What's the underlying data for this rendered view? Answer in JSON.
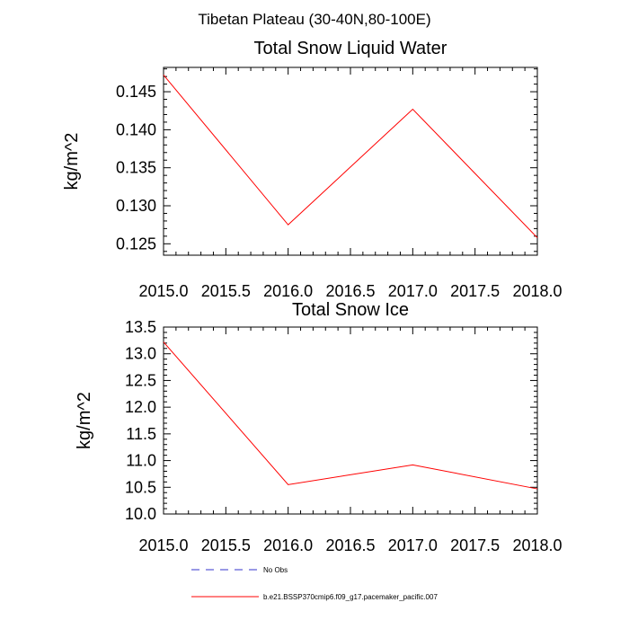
{
  "figure": {
    "title": "Tibetan Plateau (30-40N,80-100E)"
  },
  "chart_data": [
    {
      "type": "line",
      "title": "Total Snow Liquid Water",
      "xlabel": "",
      "ylabel": "kg/m^2",
      "xlim": [
        2015.0,
        2018.0
      ],
      "ylim": [
        0.1235,
        0.1482
      ],
      "xticks": [
        "2015.0",
        "2015.5",
        "2016.0",
        "2016.5",
        "2017.0",
        "2017.5",
        "2018.0"
      ],
      "xtick_values": [
        2015.0,
        2015.5,
        2016.0,
        2016.5,
        2017.0,
        2017.5,
        2018.0
      ],
      "yticks": [
        "0.125",
        "0.130",
        "0.135",
        "0.140",
        "0.145"
      ],
      "ytick_values": [
        0.125,
        0.13,
        0.135,
        0.14,
        0.145
      ],
      "series": [
        {
          "name": "b.e21.BSSP370cmip6.f09_g17.pacemaker_pacific.007",
          "color": "#ff0000",
          "x": [
            2015.0,
            2016.0,
            2017.0,
            2018.0
          ],
          "y": [
            0.1472,
            0.1275,
            0.1427,
            0.1258
          ]
        }
      ],
      "grid": false
    },
    {
      "type": "line",
      "title": "Total Snow Ice",
      "xlabel": "",
      "ylabel": "kg/m^2",
      "xlim": [
        2015.0,
        2018.0
      ],
      "ylim": [
        10.0,
        13.5
      ],
      "xticks": [
        "2015.0",
        "2015.5",
        "2016.0",
        "2016.5",
        "2017.0",
        "2017.5",
        "2018.0"
      ],
      "xtick_values": [
        2015.0,
        2015.5,
        2016.0,
        2016.5,
        2017.0,
        2017.5,
        2018.0
      ],
      "yticks": [
        "10.0",
        "10.5",
        "11.0",
        "11.5",
        "12.0",
        "12.5",
        "13.0",
        "13.5"
      ],
      "ytick_values": [
        10.0,
        10.5,
        11.0,
        11.5,
        12.0,
        12.5,
        13.0,
        13.5
      ],
      "series": [
        {
          "name": "b.e21.BSSP370cmip6.f09_g17.pacemaker_pacific.007",
          "color": "#ff0000",
          "x": [
            2015.0,
            2016.0,
            2017.0,
            2018.0
          ],
          "y": [
            13.22,
            10.55,
            10.92,
            10.47
          ]
        }
      ],
      "grid": false
    }
  ],
  "legend": {
    "placement": "bottom",
    "entries": [
      {
        "label": "No Obs",
        "color": "#3333cc",
        "style": "dashed"
      },
      {
        "label": "b.e21.BSSP370cmip6.f09_g17.pacemaker_pacific.007",
        "color": "#ff0000",
        "style": "solid"
      }
    ]
  }
}
